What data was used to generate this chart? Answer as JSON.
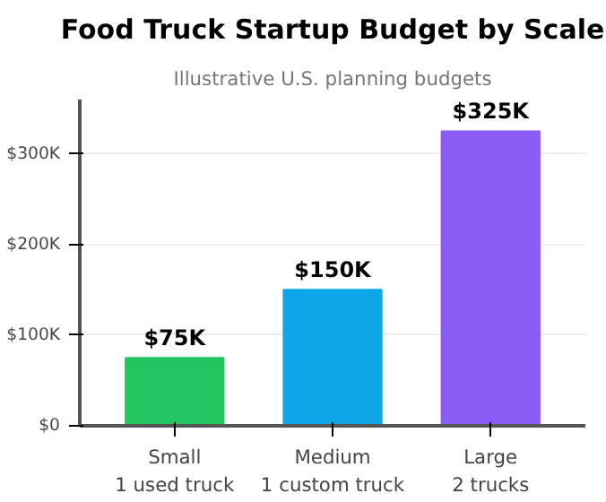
{
  "chart_data": {
    "type": "bar",
    "title": "Food Truck Startup Budget by Scale",
    "subtitle": "Illustrative U.S. planning budgets",
    "categories": [
      "Small\n1 used truck",
      "Medium\n1 custom truck",
      "Large\n2 trucks"
    ],
    "values": [
      75000,
      150000,
      325000
    ],
    "colors": [
      "#22c55e",
      "#0ea5e9",
      "#8b5cf6"
    ],
    "value_labels": [
      "$75K",
      "$150K",
      "$325K"
    ],
    "ylim": [
      0,
      360000
    ],
    "yticks": [
      {
        "value": 0,
        "label": "$0"
      },
      {
        "value": 100000,
        "label": "$100K"
      },
      {
        "value": 200000,
        "label": "$200K"
      },
      {
        "value": 300000,
        "label": "$300K"
      }
    ],
    "grid": "y"
  }
}
